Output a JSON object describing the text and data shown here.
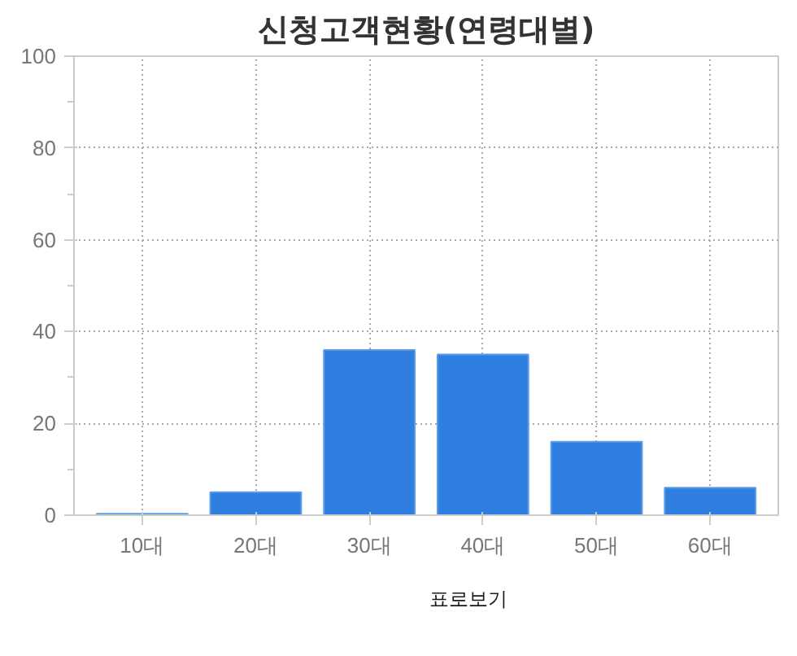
{
  "chart_data": {
    "type": "bar",
    "title": "신청고객현황(연령대별)",
    "categories": [
      "10대",
      "20대",
      "30대",
      "40대",
      "50대",
      "60대"
    ],
    "values": [
      0.3,
      5,
      36,
      35,
      16,
      6
    ],
    "color": "#2f7fe0",
    "ylim": [
      0,
      100
    ],
    "yticks": [
      0,
      20,
      40,
      60,
      80,
      100
    ],
    "grid": true,
    "annotations": [
      "표로보기"
    ]
  }
}
